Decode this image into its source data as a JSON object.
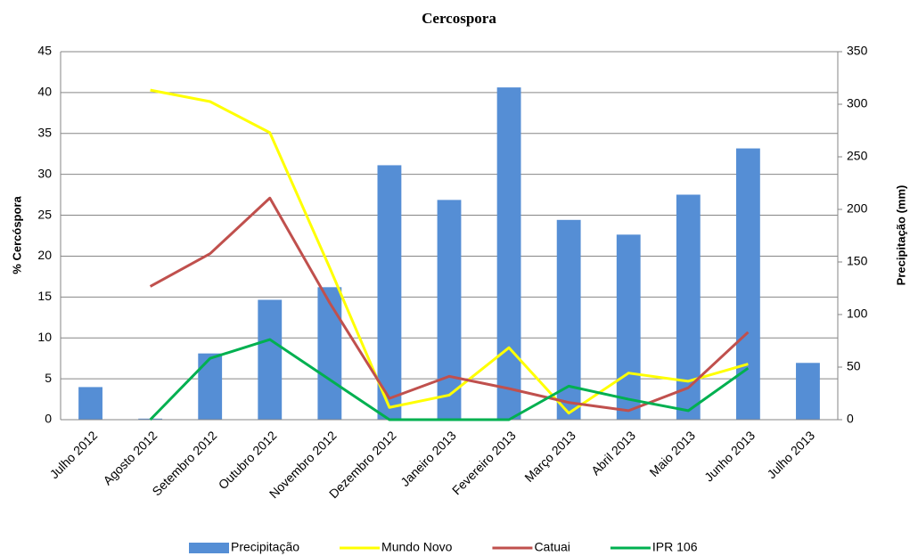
{
  "chart_data": {
    "type": "bar",
    "title": "Cercospora",
    "ylabel": "% Cercóspora",
    "y2label": "Precipitação (mm)",
    "categories": [
      "Julho 2012",
      "Agosto 2012",
      "Setembro 2012",
      "Outubro 2012",
      "Novembro 2012",
      "Dezembro 2012",
      "Janeiro 2013",
      "Fevereiro 2013",
      "Março 2013",
      "Abril 2013",
      "Maio 2013",
      "Junho 2013",
      "Julho 2013"
    ],
    "series": [
      {
        "name": "Precipitação",
        "type": "bar",
        "axis": "y2",
        "color": "#558ed5",
        "values": [
          31,
          1,
          63,
          114,
          126,
          242,
          209,
          316,
          190,
          176,
          214,
          258,
          54
        ]
      },
      {
        "name": "Mundo Novo",
        "type": "line",
        "axis": "y",
        "color": "#ffff00",
        "values": [
          null,
          40.3,
          38.9,
          35.1,
          18.6,
          1.5,
          3,
          8.8,
          0.8,
          5.7,
          4.7,
          6.8,
          null
        ]
      },
      {
        "name": "Catuai",
        "type": "line",
        "axis": "y",
        "color": "#c0504d",
        "values": [
          null,
          16.3,
          20.3,
          27.1,
          14.3,
          2.6,
          5.3,
          3.8,
          2.1,
          1.1,
          3.9,
          10.7,
          null
        ]
      },
      {
        "name": "IPR 106",
        "type": "line",
        "axis": "y",
        "color": "#00b050",
        "values": [
          null,
          0,
          7.5,
          9.8,
          4.9,
          0,
          0,
          0,
          4.1,
          2.5,
          1.1,
          6.3,
          null
        ]
      }
    ],
    "ylim": [
      0,
      45
    ],
    "yticks": [
      0,
      5,
      10,
      15,
      20,
      25,
      30,
      35,
      40,
      45
    ],
    "y2lim": [
      0,
      350
    ],
    "y2ticks": [
      0,
      50,
      100,
      150,
      200,
      250,
      300,
      350
    ],
    "grid": true,
    "legend": "bottom"
  }
}
